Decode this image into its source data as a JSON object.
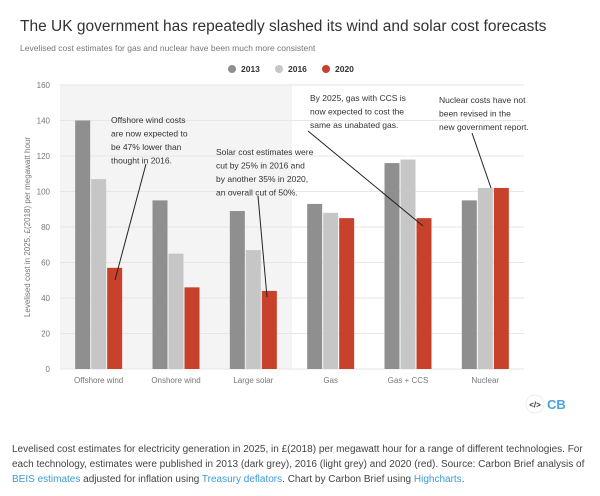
{
  "chart_data": {
    "type": "bar",
    "title": "The UK government has repeatedly slashed its wind and solar cost forecasts",
    "subtitle": "Levelised cost estimates for gas and nuclear have been much more consistent",
    "ylabel": "Levelised cost in 2025, £(2018) per megawatt hour",
    "xlabel": "",
    "ylim": [
      0,
      160
    ],
    "yticks": [
      "0",
      "20",
      "40",
      "60",
      "80",
      "100",
      "120",
      "140",
      "160"
    ],
    "grid": true,
    "legend_position": "top-center",
    "categories": [
      "Offshore wind",
      "Onshore wind",
      "Large solar",
      "Gas",
      "Gas + CCS",
      "Nuclear"
    ],
    "series": [
      {
        "name": "2013",
        "color": "#8f8f8f",
        "values": [
          140,
          95,
          89,
          93,
          116,
          95
        ]
      },
      {
        "name": "2016",
        "color": "#c6c6c6",
        "values": [
          107,
          65,
          67,
          88,
          118,
          102
        ]
      },
      {
        "name": "2020",
        "color": "#c8412b",
        "values": [
          57,
          46,
          44,
          85,
          85,
          102
        ]
      }
    ],
    "annotations": [
      {
        "lines": [
          "Offshore wind costs",
          "are now expected to",
          "be 47% lower than",
          "thought in 2016."
        ]
      },
      {
        "lines": [
          "Solar cost estimates were",
          "cut by 25% in 2016 and",
          "by another 35% in 2020,",
          "an overall cut of 50%."
        ]
      },
      {
        "lines": [
          "By 2025, gas with CCS is",
          "now expected to cost the",
          "same as unabated gas."
        ]
      },
      {
        "lines": [
          "Nuclear costs have not",
          "been revised in the",
          "new government report."
        ]
      }
    ]
  },
  "logo": "CB",
  "embed_icon": "code-icon",
  "caption": {
    "text1": "Levelised cost estimates for electricity generation in 2025, in £(2018) per megawatt hour for a range of different technologies. For each technology, estimates were published in 2013 (dark grey), 2016 (light grey) and 2020 (red). Source: Carbon Brief analysis of ",
    "link1": "BEIS estimates",
    "text2": " adjusted for inflation using ",
    "link2": "Treasury deflators",
    "text3": ". Chart by Carbon Brief using ",
    "link3": "Highcharts",
    "text4": "."
  }
}
